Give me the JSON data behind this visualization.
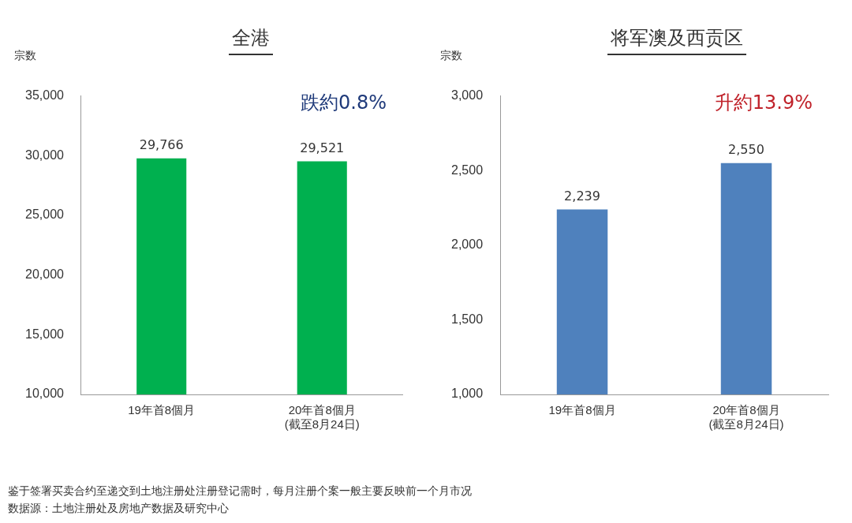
{
  "chart_data": [
    {
      "type": "bar",
      "title": "全港",
      "ylabel": "宗数",
      "categories": [
        "19年首8個月",
        "20年首8個月\n(截至8月24日)"
      ],
      "values": [
        29766,
        29521
      ],
      "value_labels": [
        "29,766",
        "29,521"
      ],
      "color": "#00b04f",
      "ylim": [
        10000,
        35000
      ],
      "yticks": [
        {
          "value": 10000,
          "label": "10,000"
        },
        {
          "value": 15000,
          "label": "15,000"
        },
        {
          "value": 20000,
          "label": "20,000"
        },
        {
          "value": 25000,
          "label": "25,000"
        },
        {
          "value": 30000,
          "label": "30,000"
        },
        {
          "value": 35000,
          "label": "35,000"
        }
      ],
      "grid": false,
      "legend": false,
      "annotations": [
        "跌約0.8%",
        "鉴于签署买卖合约至递交到土地注册处注册登记需时，每月注册个案一般主要反映前一个月市况",
        "数据源：土地注册处及房地产数据及研究中心"
      ]
    },
    {
      "type": "bar",
      "title": "将军澳及西贡区",
      "ylabel": "宗数",
      "categories": [
        "19年首8個月",
        "20年首8個月\n(截至8月24日)"
      ],
      "values": [
        2239,
        2550
      ],
      "value_labels": [
        "2,239",
        "2,550"
      ],
      "color": "#4f81bd",
      "ylim": [
        1000,
        3000
      ],
      "yticks": [
        {
          "value": 1000,
          "label": "1,000"
        },
        {
          "value": 1500,
          "label": "1,500"
        },
        {
          "value": 2000,
          "label": "2,000"
        },
        {
          "value": 2500,
          "label": "2,500"
        },
        {
          "value": 3000,
          "label": "3,000"
        }
      ],
      "grid": false,
      "legend": false,
      "annotations": [
        "升約13.9%"
      ]
    }
  ]
}
